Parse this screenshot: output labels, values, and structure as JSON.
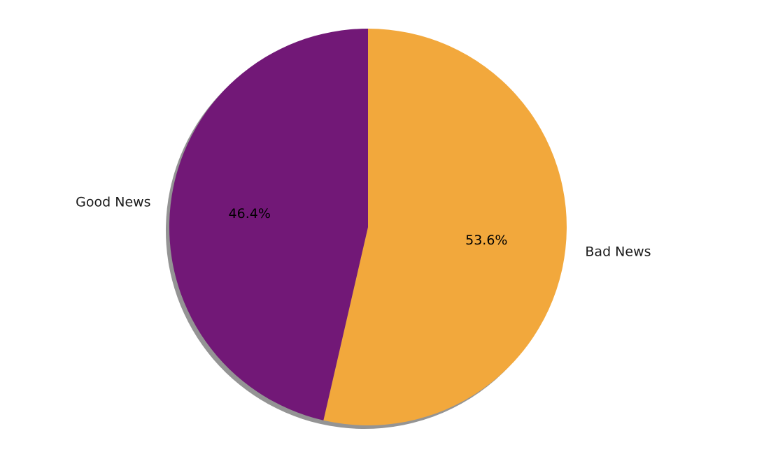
{
  "chart_data": {
    "type": "pie",
    "title": "",
    "start_angle_deg": 90,
    "direction": "clockwise",
    "shadow": true,
    "slices": [
      {
        "label": "Bad News",
        "value": 53.6,
        "pct_label": "53.6%",
        "color": "#F2A83C"
      },
      {
        "label": "Good News",
        "value": 46.4,
        "pct_label": "46.4%",
        "color": "#721877"
      }
    ]
  }
}
